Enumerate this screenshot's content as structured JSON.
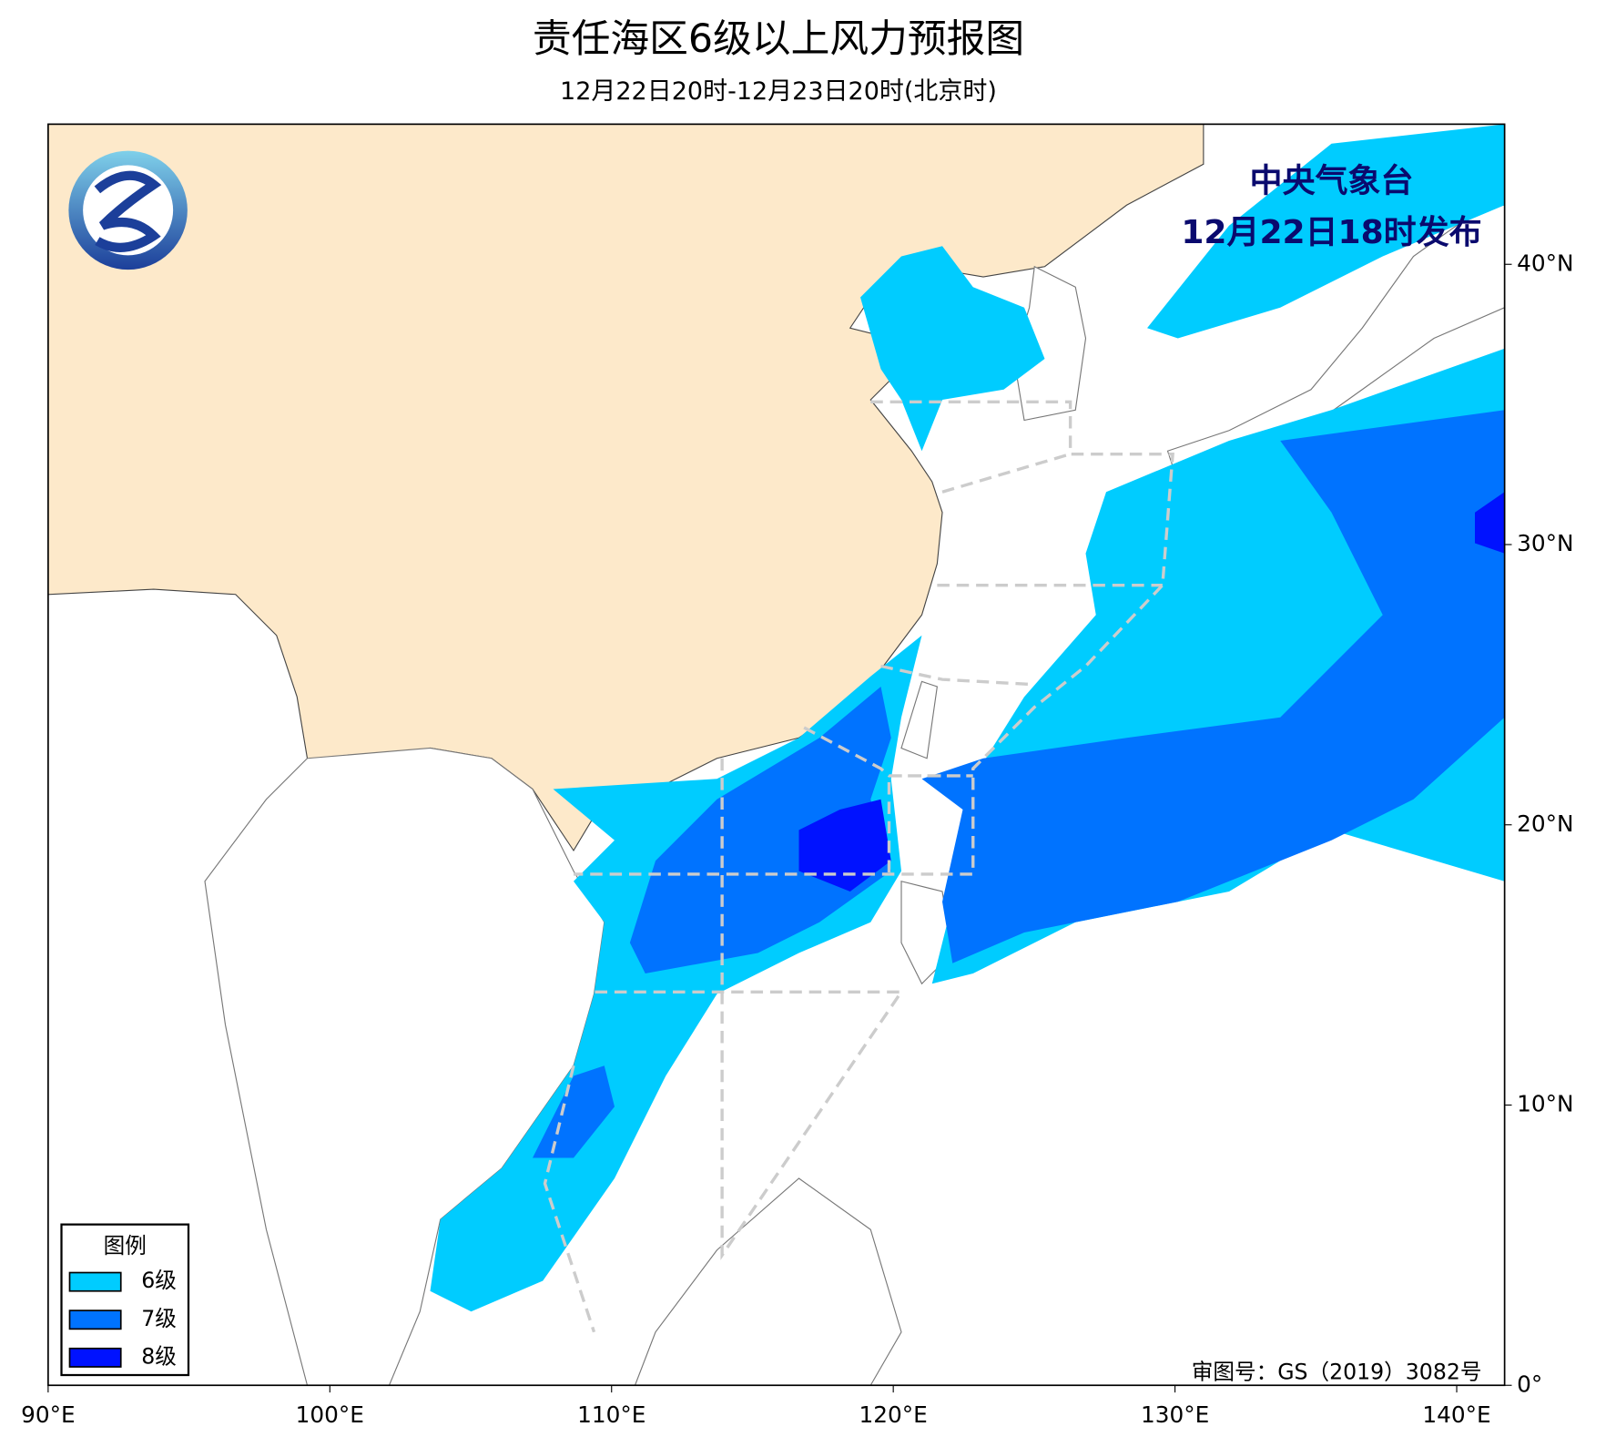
{
  "header": {
    "title": "责任海区6级以上风力预报图",
    "subtitle": "12月22日20时-12月23日20时(北京时)"
  },
  "issuer": {
    "agency": "中央气象台",
    "issued": "12月22日18时发布"
  },
  "map": {
    "xlim": [
      90,
      141.7
    ],
    "ylim": [
      0,
      45
    ],
    "xticks": [
      {
        "value": 90,
        "label": "90°E"
      },
      {
        "value": 100,
        "label": "100°E"
      },
      {
        "value": 110,
        "label": "110°E"
      },
      {
        "value": 120,
        "label": "120°E"
      },
      {
        "value": 130,
        "label": "130°E"
      },
      {
        "value": 140,
        "label": "140°E"
      }
    ],
    "yticks": [
      {
        "value": 0,
        "label": "0°"
      },
      {
        "value": 10,
        "label": "10°N"
      },
      {
        "value": 20,
        "label": "20°N"
      },
      {
        "value": 30,
        "label": "30°N"
      },
      {
        "value": 40,
        "label": "40°N"
      }
    ]
  },
  "legend": {
    "title": "图例",
    "items": [
      {
        "label": "6级",
        "color": "#00ccff"
      },
      {
        "label": "7级",
        "color": "#0073ff"
      },
      {
        "label": "8级",
        "color": "#0012ff"
      }
    ]
  },
  "review_number": "审图号：GS（2019）3082号"
}
